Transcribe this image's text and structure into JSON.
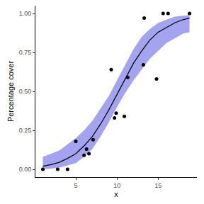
{
  "chart_data": {
    "type": "scatter",
    "x_label": "x",
    "y_label": "Percentage cover",
    "xlim": [
      0.1,
      19.7
    ],
    "xticks": [
      5,
      10,
      15
    ],
    "ylim": [
      -0.05,
      1.05
    ],
    "yticks": [
      {
        "value": 0,
        "label": "0.00"
      },
      {
        "value": 0.25,
        "label": "0.25"
      },
      {
        "value": 0.5,
        "label": "0.50"
      },
      {
        "value": 0.75,
        "label": "0.75"
      },
      {
        "value": 1,
        "label": "1.00"
      }
    ],
    "grid": false,
    "series": [
      {
        "type": "band",
        "color": "#a3a3f0",
        "x": [
          1,
          2,
          3,
          4,
          5,
          6,
          7,
          8,
          9,
          10,
          11,
          12,
          13,
          14,
          15,
          16,
          17,
          18,
          18.8
        ],
        "lower": [
          0.0,
          0.005,
          0.01,
          0.025,
          0.04,
          0.08,
          0.13,
          0.21,
          0.3,
          0.4,
          0.49,
          0.57,
          0.64,
          0.71,
          0.76,
          0.81,
          0.84,
          0.87,
          0.88
        ],
        "upper": [
          0.08,
          0.1,
          0.12,
          0.16,
          0.2,
          0.25,
          0.31,
          0.39,
          0.47,
          0.57,
          0.67,
          0.77,
          0.85,
          0.9,
          0.94,
          0.96,
          0.98,
          0.985,
          0.99
        ]
      },
      {
        "type": "line",
        "color": "#000000",
        "x": [
          1,
          2,
          3,
          4,
          5,
          6,
          7,
          8,
          9,
          10,
          11,
          12,
          13,
          14,
          15,
          16,
          17,
          18,
          18.8
        ],
        "values": [
          0.02,
          0.03,
          0.045,
          0.07,
          0.1,
          0.15,
          0.21,
          0.29,
          0.38,
          0.48,
          0.58,
          0.68,
          0.76,
          0.83,
          0.88,
          0.91,
          0.94,
          0.96,
          0.97
        ]
      },
      {
        "type": "scatter",
        "color": "#000000",
        "marker": "circle",
        "x": [
          1,
          2.8,
          4,
          5,
          6,
          6.3,
          6.6,
          7.1,
          9.3,
          9.7,
          9.9,
          10.9,
          11.3,
          13.2,
          13.3,
          14.8,
          15.6,
          16.2,
          18.8
        ],
        "values": [
          0,
          0,
          0,
          0.18,
          0.09,
          0.13,
          0.1,
          0.19,
          0.64,
          0.33,
          0.36,
          0.34,
          0.59,
          0.67,
          0.97,
          0.58,
          1.0,
          1.0,
          1.0
        ]
      }
    ]
  }
}
